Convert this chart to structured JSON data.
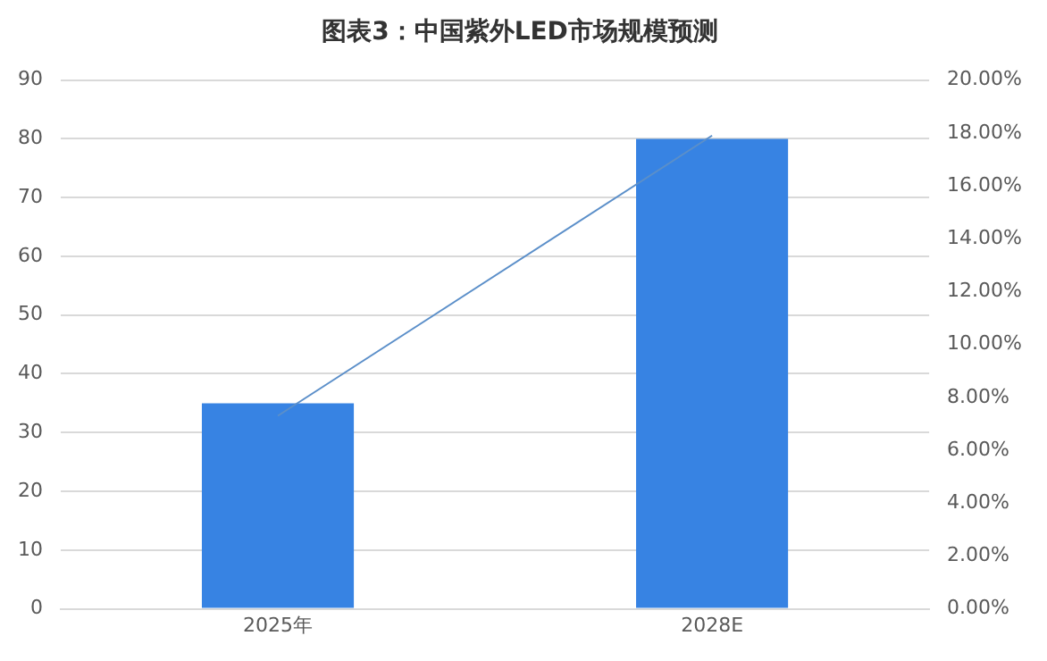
{
  "chart_data": {
    "type": "bar",
    "title": "图表3：中国紫外LED市场规模预测",
    "categories": [
      "2025年",
      "2028E"
    ],
    "series": [
      {
        "color": "#3783e3",
        "values": [
          35,
          80
        ]
      },
      {
        "type": "line",
        "axis": "y2",
        "color": "#5b8fc9",
        "values": [
          7.3,
          17.9
        ]
      }
    ],
    "ylim": [
      0,
      90
    ],
    "yticks": [
      0,
      10,
      20,
      30,
      40,
      50,
      60,
      70,
      80,
      90
    ],
    "y2lim": [
      0,
      20
    ],
    "y2ticks": [
      {
        "value": 0,
        "label": "0.00%"
      },
      {
        "value": 2,
        "label": "2.00%"
      },
      {
        "value": 4,
        "label": "4.00%"
      },
      {
        "value": 6,
        "label": "6.00%"
      },
      {
        "value": 8,
        "label": "8.00%"
      },
      {
        "value": 10,
        "label": "10.00%"
      },
      {
        "value": 12,
        "label": "12.00%"
      },
      {
        "value": 14,
        "label": "14.00%"
      },
      {
        "value": 16,
        "label": "16.00%"
      },
      {
        "value": 18,
        "label": "18.00%"
      },
      {
        "value": 20,
        "label": "20.00%"
      }
    ],
    "grid": "y",
    "legend": false,
    "marker": "none",
    "line_style": "solid"
  }
}
